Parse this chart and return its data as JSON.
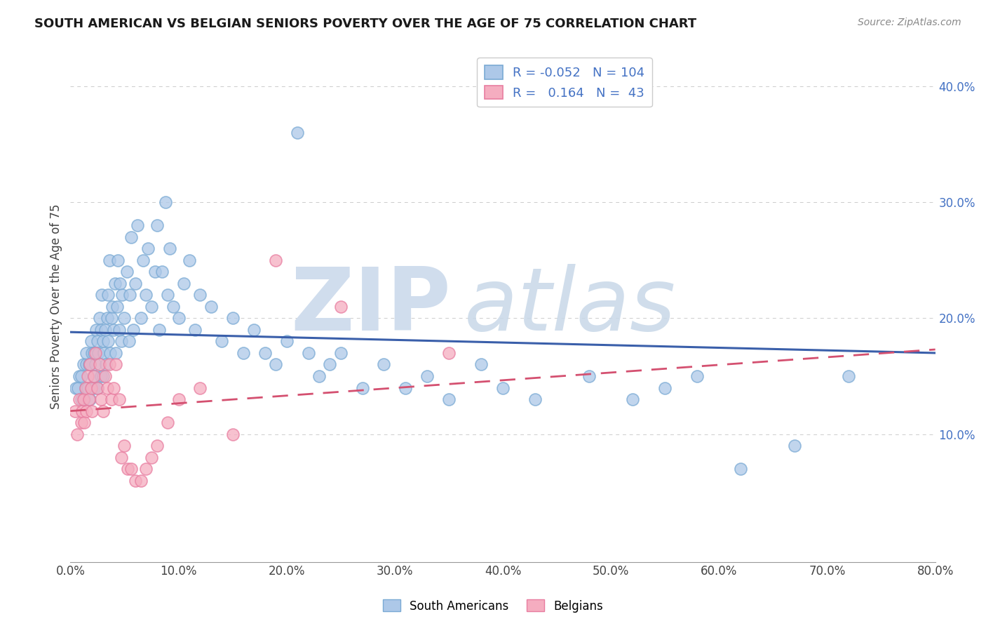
{
  "title": "SOUTH AMERICAN VS BELGIAN SENIORS POVERTY OVER THE AGE OF 75 CORRELATION CHART",
  "source": "Source: ZipAtlas.com",
  "ylabel": "Seniors Poverty Over the Age of 75",
  "xlim": [
    0.0,
    0.8
  ],
  "ylim": [
    -0.01,
    0.43
  ],
  "blue_color": "#adc8e8",
  "blue_edge": "#7aaad4",
  "pink_color": "#f5adc0",
  "pink_edge": "#e87da0",
  "trend_blue": "#3a5faa",
  "trend_pink": "#d45070",
  "legend_R_blue": "-0.052",
  "legend_N_blue": "104",
  "legend_R_pink": "0.164",
  "legend_N_pink": "43",
  "watermark_zip": "ZIP",
  "watermark_atlas": "atlas",
  "background_color": "#ffffff",
  "grid_color": "#cccccc",
  "blue_trend_start_y": 0.188,
  "blue_trend_end_y": 0.17,
  "pink_trend_start_y": 0.12,
  "pink_trend_end_y": 0.173,
  "sa_x": [
    0.005,
    0.007,
    0.008,
    0.01,
    0.01,
    0.012,
    0.013,
    0.014,
    0.015,
    0.015,
    0.016,
    0.017,
    0.018,
    0.018,
    0.019,
    0.02,
    0.02,
    0.021,
    0.022,
    0.022,
    0.023,
    0.024,
    0.025,
    0.025,
    0.026,
    0.027,
    0.028,
    0.028,
    0.029,
    0.03,
    0.03,
    0.031,
    0.032,
    0.033,
    0.034,
    0.035,
    0.035,
    0.036,
    0.037,
    0.038,
    0.039,
    0.04,
    0.041,
    0.042,
    0.043,
    0.044,
    0.045,
    0.046,
    0.047,
    0.048,
    0.05,
    0.052,
    0.054,
    0.055,
    0.056,
    0.058,
    0.06,
    0.062,
    0.065,
    0.067,
    0.07,
    0.072,
    0.075,
    0.078,
    0.08,
    0.082,
    0.085,
    0.088,
    0.09,
    0.092,
    0.095,
    0.1,
    0.105,
    0.11,
    0.115,
    0.12,
    0.13,
    0.14,
    0.15,
    0.16,
    0.17,
    0.18,
    0.19,
    0.2,
    0.21,
    0.22,
    0.23,
    0.24,
    0.25,
    0.27,
    0.29,
    0.31,
    0.33,
    0.35,
    0.38,
    0.4,
    0.43,
    0.48,
    0.52,
    0.55,
    0.58,
    0.62,
    0.67,
    0.72
  ],
  "sa_y": [
    0.14,
    0.14,
    0.15,
    0.13,
    0.15,
    0.16,
    0.13,
    0.14,
    0.16,
    0.17,
    0.14,
    0.16,
    0.13,
    0.16,
    0.18,
    0.14,
    0.17,
    0.15,
    0.14,
    0.17,
    0.16,
    0.19,
    0.14,
    0.18,
    0.17,
    0.2,
    0.15,
    0.19,
    0.22,
    0.15,
    0.18,
    0.17,
    0.19,
    0.16,
    0.2,
    0.22,
    0.18,
    0.25,
    0.17,
    0.2,
    0.21,
    0.19,
    0.23,
    0.17,
    0.21,
    0.25,
    0.19,
    0.23,
    0.18,
    0.22,
    0.2,
    0.24,
    0.18,
    0.22,
    0.27,
    0.19,
    0.23,
    0.28,
    0.2,
    0.25,
    0.22,
    0.26,
    0.21,
    0.24,
    0.28,
    0.19,
    0.24,
    0.3,
    0.22,
    0.26,
    0.21,
    0.2,
    0.23,
    0.25,
    0.19,
    0.22,
    0.21,
    0.18,
    0.2,
    0.17,
    0.19,
    0.17,
    0.16,
    0.18,
    0.36,
    0.17,
    0.15,
    0.16,
    0.17,
    0.14,
    0.16,
    0.14,
    0.15,
    0.13,
    0.16,
    0.14,
    0.13,
    0.15,
    0.13,
    0.14,
    0.15,
    0.07,
    0.09,
    0.15
  ],
  "be_x": [
    0.004,
    0.006,
    0.008,
    0.01,
    0.011,
    0.012,
    0.013,
    0.014,
    0.015,
    0.016,
    0.017,
    0.018,
    0.019,
    0.02,
    0.022,
    0.023,
    0.025,
    0.027,
    0.028,
    0.03,
    0.032,
    0.034,
    0.036,
    0.038,
    0.04,
    0.042,
    0.045,
    0.047,
    0.05,
    0.053,
    0.056,
    0.06,
    0.065,
    0.07,
    0.075,
    0.08,
    0.09,
    0.1,
    0.12,
    0.15,
    0.19,
    0.25,
    0.35
  ],
  "be_y": [
    0.12,
    0.1,
    0.13,
    0.11,
    0.12,
    0.13,
    0.11,
    0.14,
    0.12,
    0.15,
    0.13,
    0.16,
    0.14,
    0.12,
    0.15,
    0.17,
    0.14,
    0.16,
    0.13,
    0.12,
    0.15,
    0.14,
    0.16,
    0.13,
    0.14,
    0.16,
    0.13,
    0.08,
    0.09,
    0.07,
    0.07,
    0.06,
    0.06,
    0.07,
    0.08,
    0.09,
    0.11,
    0.13,
    0.14,
    0.1,
    0.25,
    0.21,
    0.17
  ]
}
